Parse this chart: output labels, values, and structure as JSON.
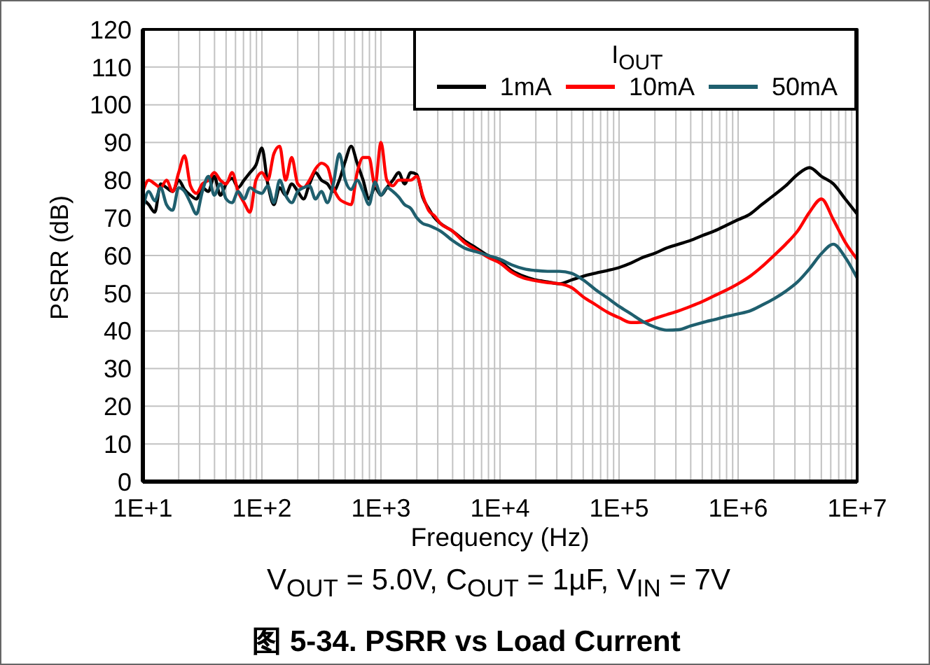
{
  "chart_data": {
    "type": "line",
    "title": "图 5-34. PSRR vs Load Current",
    "xlabel": "Frequency (Hz)",
    "ylabel": "PSRR (dB)",
    "legend_title": "I$_{OUT}$",
    "annotations": [
      "V$_{OUT}$ = 5.0V, C$_{OUT}$ = 1µF, V$_{IN}$ = 7V"
    ],
    "log": "x",
    "xlim": [
      10,
      10000000
    ],
    "xticks": [
      {
        "value": 10,
        "label": "1E+1"
      },
      {
        "value": 20,
        "label": null
      },
      {
        "value": 30,
        "label": null
      },
      {
        "value": 40,
        "label": null
      },
      {
        "value": 50,
        "label": null
      },
      {
        "value": 60,
        "label": null
      },
      {
        "value": 70,
        "label": null
      },
      {
        "value": 80,
        "label": null
      },
      {
        "value": 90,
        "label": null
      },
      {
        "value": 100,
        "label": "1E+2"
      },
      {
        "value": 200,
        "label": null
      },
      {
        "value": 300,
        "label": null
      },
      {
        "value": 400,
        "label": null
      },
      {
        "value": 500,
        "label": null
      },
      {
        "value": 600,
        "label": null
      },
      {
        "value": 700,
        "label": null
      },
      {
        "value": 800,
        "label": null
      },
      {
        "value": 900,
        "label": null
      },
      {
        "value": 1000,
        "label": "1E+3"
      },
      {
        "value": 2000,
        "label": null
      },
      {
        "value": 3000,
        "label": null
      },
      {
        "value": 4000,
        "label": null
      },
      {
        "value": 5000,
        "label": null
      },
      {
        "value": 6000,
        "label": null
      },
      {
        "value": 7000,
        "label": null
      },
      {
        "value": 8000,
        "label": null
      },
      {
        "value": 9000,
        "label": null
      },
      {
        "value": 10000,
        "label": "1E+4"
      },
      {
        "value": 20000,
        "label": null
      },
      {
        "value": 30000,
        "label": null
      },
      {
        "value": 40000,
        "label": null
      },
      {
        "value": 50000,
        "label": null
      },
      {
        "value": 60000,
        "label": null
      },
      {
        "value": 70000,
        "label": null
      },
      {
        "value": 80000,
        "label": null
      },
      {
        "value": 90000,
        "label": null
      },
      {
        "value": 100000,
        "label": "1E+5"
      },
      {
        "value": 200000,
        "label": null
      },
      {
        "value": 300000,
        "label": null
      },
      {
        "value": 400000,
        "label": null
      },
      {
        "value": 500000,
        "label": null
      },
      {
        "value": 600000,
        "label": null
      },
      {
        "value": 700000,
        "label": null
      },
      {
        "value": 800000,
        "label": null
      },
      {
        "value": 900000,
        "label": null
      },
      {
        "value": 1000000,
        "label": "1E+6"
      },
      {
        "value": 2000000,
        "label": null
      },
      {
        "value": 3000000,
        "label": null
      },
      {
        "value": 4000000,
        "label": null
      },
      {
        "value": 5000000,
        "label": null
      },
      {
        "value": 6000000,
        "label": null
      },
      {
        "value": 7000000,
        "label": null
      },
      {
        "value": 8000000,
        "label": null
      },
      {
        "value": 9000000,
        "label": null
      },
      {
        "value": 10000000,
        "label": "1E+7"
      }
    ],
    "ylim": [
      0,
      120
    ],
    "yticks": [
      0,
      10,
      20,
      30,
      40,
      50,
      60,
      70,
      80,
      90,
      100,
      110,
      120
    ],
    "grid": true,
    "legend": "top right",
    "line_style": "solid",
    "x": [
      10,
      11.2,
      12.6,
      14.1,
      15.8,
      17.8,
      20,
      22.4,
      25.1,
      28.2,
      31.6,
      35.5,
      39.8,
      44.7,
      50.1,
      56.2,
      63.1,
      70.8,
      79.4,
      89.1,
      100,
      112,
      126,
      141,
      158,
      178,
      200,
      224,
      251,
      282,
      316,
      355,
      398,
      447,
      501,
      562,
      631,
      708,
      794,
      891,
      1000,
      1120,
      1260,
      1410,
      1580,
      1780,
      2000,
      2240,
      2510,
      2820,
      3160,
      3980,
      5010,
      6310,
      7940,
      10000,
      12600,
      15800,
      20000,
      25100,
      31600,
      39800,
      50100,
      63100,
      79400,
      100000,
      126000,
      158000,
      200000,
      251000,
      316000,
      398000,
      501000,
      631000,
      794000,
      1000000,
      1260000,
      1580000,
      2000000,
      2510000,
      3160000,
      3980000,
      5010000,
      6310000,
      7940000,
      10000000
    ],
    "series": [
      {
        "name": "1mA",
        "color": "#000000",
        "values": [
          75,
          73.5,
          71.5,
          79,
          78,
          77,
          80,
          77.5,
          76,
          75,
          78,
          77,
          81,
          76,
          79,
          80.5,
          78,
          80,
          82,
          84,
          88.5,
          79,
          73.5,
          78,
          76,
          79,
          77,
          75,
          79,
          82,
          80,
          79,
          77,
          80,
          85,
          89,
          84.5,
          80,
          75,
          78,
          76,
          78,
          80,
          82,
          79,
          82,
          81.5,
          75.5,
          72.5,
          70,
          68.5,
          66.5,
          64,
          62,
          60,
          58.5,
          56,
          54.5,
          53.5,
          53,
          52.5,
          53.5,
          54.5,
          55.3,
          56,
          56.8,
          58,
          59.5,
          60.6,
          62,
          63,
          64,
          65.3,
          66.5,
          68,
          69.5,
          71,
          73.5,
          76,
          78.5,
          81.5,
          83.3,
          81,
          79,
          75,
          71
        ]
      },
      {
        "name": "10mA",
        "color": "#ff0000",
        "values": [
          77,
          80,
          79,
          78,
          80,
          77,
          82,
          86.5,
          78.5,
          76.5,
          79,
          80,
          82,
          80,
          79,
          82,
          77,
          74,
          71.5,
          80,
          82,
          80,
          87,
          89,
          80,
          86,
          79,
          78,
          80,
          83,
          84.5,
          83.5,
          78,
          75,
          74,
          73.5,
          82,
          86,
          86,
          78.5,
          90,
          80,
          78.5,
          80,
          80,
          80,
          81,
          76,
          72,
          70.5,
          68.5,
          66.5,
          63.5,
          61.5,
          59.5,
          58,
          55.5,
          54,
          53.3,
          52.8,
          52.5,
          51.5,
          49,
          47,
          45,
          43.5,
          42.2,
          42.3,
          43.3,
          44.3,
          45.3,
          46.5,
          47.8,
          49.3,
          50.8,
          52.5,
          54.5,
          57,
          60,
          63,
          66.5,
          71.5,
          75,
          69.5,
          63.5,
          59
        ]
      },
      {
        "name": "50mA",
        "color": "#1f5f6e",
        "values": [
          72.5,
          77,
          74.5,
          78,
          73.5,
          72,
          78,
          77,
          74,
          71,
          77,
          81,
          76,
          79,
          75,
          74,
          77,
          75,
          78,
          77,
          76.5,
          78.5,
          74,
          80,
          76,
          74,
          77,
          78,
          78.5,
          75,
          77,
          74,
          79,
          87,
          80,
          77.5,
          80,
          77,
          73.5,
          79.5,
          76,
          78,
          77,
          75.5,
          73.5,
          72.5,
          70,
          68.5,
          68,
          67.3,
          66.5,
          64,
          62,
          61,
          60,
          59,
          57.5,
          56.5,
          56,
          55.8,
          55.8,
          55.3,
          53.5,
          51,
          48.8,
          46.5,
          44.5,
          42.5,
          41,
          40.2,
          40.3,
          41.3,
          42.2,
          43,
          43.8,
          44.5,
          45.3,
          46.8,
          48.5,
          50.5,
          53,
          56.5,
          60.5,
          63,
          59.5,
          54
        ]
      }
    ]
  }
}
